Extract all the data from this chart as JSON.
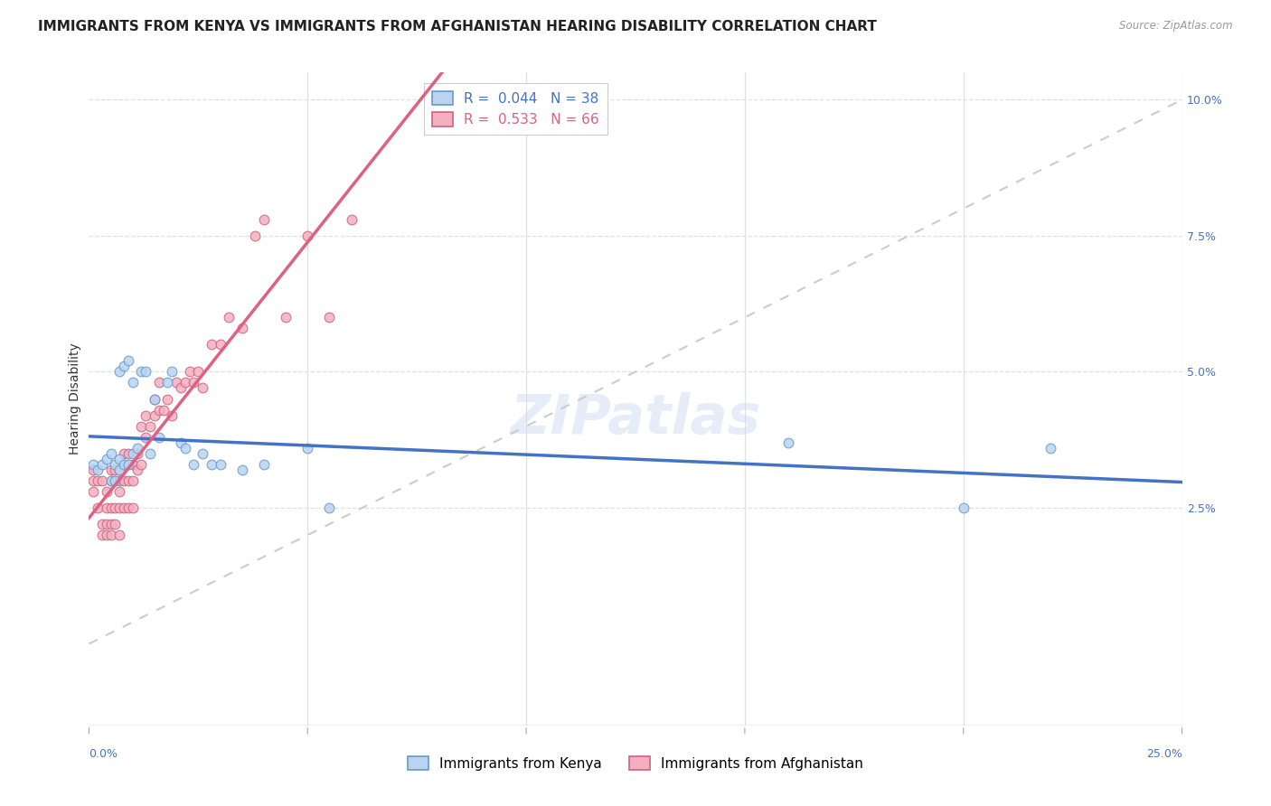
{
  "title": "IMMIGRANTS FROM KENYA VS IMMIGRANTS FROM AFGHANISTAN HEARING DISABILITY CORRELATION CHART",
  "source": "Source: ZipAtlas.com",
  "ylabel": "Hearing Disability",
  "xlim": [
    0.0,
    0.25
  ],
  "ylim": [
    -0.015,
    0.105
  ],
  "ytick_vals": [
    0.025,
    0.05,
    0.075,
    0.1
  ],
  "ytick_labels": [
    "2.5%",
    "5.0%",
    "7.5%",
    "10.0%"
  ],
  "kenya_R": "0.044",
  "kenya_N": "38",
  "afghanistan_R": "0.533",
  "afghanistan_N": "66",
  "kenya_dot_color": "#b8d4f0",
  "kenya_edge_color": "#6699cc",
  "kenya_line_color": "#4472c4",
  "afghanistan_dot_color": "#f4b0c0",
  "afghanistan_edge_color": "#d06080",
  "afghanistan_line_color": "#e06080",
  "diagonal_line_color": "#cccccc",
  "grid_color": "#e0e0e0",
  "background_color": "#ffffff",
  "legend_label_kenya": "Immigrants from Kenya",
  "legend_label_afghanistan": "Immigrants from Afghanistan",
  "kenya_x": [
    0.001,
    0.002,
    0.003,
    0.004,
    0.005,
    0.005,
    0.006,
    0.006,
    0.007,
    0.007,
    0.007,
    0.008,
    0.008,
    0.009,
    0.009,
    0.01,
    0.01,
    0.011,
    0.012,
    0.013,
    0.014,
    0.015,
    0.016,
    0.018,
    0.019,
    0.021,
    0.022,
    0.024,
    0.026,
    0.028,
    0.03,
    0.035,
    0.04,
    0.05,
    0.055,
    0.16,
    0.2,
    0.22
  ],
  "kenya_y": [
    0.033,
    0.032,
    0.033,
    0.034,
    0.03,
    0.035,
    0.03,
    0.033,
    0.032,
    0.034,
    0.05,
    0.033,
    0.051,
    0.033,
    0.052,
    0.048,
    0.035,
    0.036,
    0.05,
    0.05,
    0.035,
    0.045,
    0.038,
    0.048,
    0.05,
    0.037,
    0.036,
    0.033,
    0.035,
    0.033,
    0.033,
    0.032,
    0.033,
    0.036,
    0.025,
    0.037,
    0.025,
    0.036
  ],
  "afghanistan_x": [
    0.001,
    0.001,
    0.001,
    0.002,
    0.002,
    0.003,
    0.003,
    0.003,
    0.004,
    0.004,
    0.004,
    0.004,
    0.005,
    0.005,
    0.005,
    0.005,
    0.005,
    0.006,
    0.006,
    0.006,
    0.006,
    0.007,
    0.007,
    0.007,
    0.007,
    0.007,
    0.008,
    0.008,
    0.008,
    0.009,
    0.009,
    0.009,
    0.01,
    0.01,
    0.01,
    0.011,
    0.011,
    0.012,
    0.012,
    0.013,
    0.013,
    0.014,
    0.015,
    0.015,
    0.016,
    0.016,
    0.017,
    0.018,
    0.019,
    0.02,
    0.021,
    0.022,
    0.023,
    0.024,
    0.025,
    0.026,
    0.028,
    0.03,
    0.032,
    0.035,
    0.038,
    0.04,
    0.045,
    0.05,
    0.055,
    0.06
  ],
  "afghanistan_y": [
    0.03,
    0.032,
    0.028,
    0.03,
    0.025,
    0.02,
    0.022,
    0.03,
    0.02,
    0.022,
    0.025,
    0.028,
    0.02,
    0.022,
    0.025,
    0.03,
    0.032,
    0.022,
    0.025,
    0.03,
    0.032,
    0.025,
    0.028,
    0.03,
    0.032,
    0.02,
    0.025,
    0.03,
    0.035,
    0.025,
    0.03,
    0.035,
    0.025,
    0.03,
    0.033,
    0.032,
    0.035,
    0.033,
    0.04,
    0.038,
    0.042,
    0.04,
    0.042,
    0.045,
    0.043,
    0.048,
    0.043,
    0.045,
    0.042,
    0.048,
    0.047,
    0.048,
    0.05,
    0.048,
    0.05,
    0.047,
    0.055,
    0.055,
    0.06,
    0.058,
    0.075,
    0.078,
    0.06,
    0.075,
    0.06,
    0.078
  ],
  "watermark_text": "ZIPatlas",
  "title_fontsize": 11,
  "ylabel_fontsize": 10,
  "tick_fontsize": 9,
  "legend_fontsize": 11,
  "marker_size": 60,
  "trend_line_end_x": 0.25
}
